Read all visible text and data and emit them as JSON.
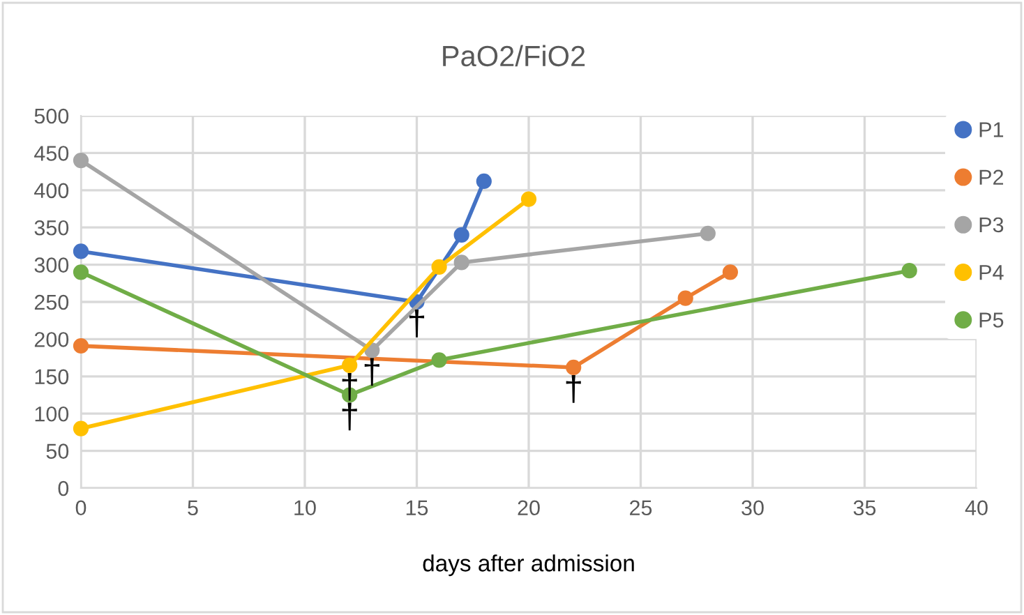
{
  "chart_data": {
    "type": "line",
    "title": "PaO2/FiO2",
    "xlabel": "days after admission",
    "xlim": [
      0,
      40
    ],
    "xticks": [
      0,
      5,
      10,
      15,
      20,
      25,
      30,
      35,
      40
    ],
    "ylim": [
      0,
      500
    ],
    "yticks": [
      0,
      50,
      100,
      150,
      200,
      250,
      300,
      350,
      400,
      450,
      500
    ],
    "grid": true,
    "legend": "top right",
    "marker": "circle",
    "line_style": "solid",
    "series": [
      {
        "name": "P1",
        "color": "#4472c4",
        "x": [
          0,
          15,
          17,
          18
        ],
        "values": [
          318,
          250,
          340,
          412
        ]
      },
      {
        "name": "P2",
        "color": "#ed7d31",
        "x": [
          0,
          22,
          27,
          29
        ],
        "values": [
          191,
          162,
          255,
          290
        ]
      },
      {
        "name": "P3",
        "color": "#a5a5a5",
        "x": [
          0,
          13,
          17,
          28
        ],
        "values": [
          440,
          185,
          303,
          342
        ]
      },
      {
        "name": "P4",
        "color": "#ffc000",
        "x": [
          0,
          12,
          16,
          20
        ],
        "values": [
          80,
          165,
          297,
          388
        ]
      },
      {
        "name": "P5",
        "color": "#70ad47",
        "x": [
          0,
          12,
          16,
          37
        ],
        "values": [
          290,
          125,
          172,
          292
        ]
      }
    ],
    "annotations": [
      {
        "text": "†",
        "x": 12,
        "y": 165
      },
      {
        "text": "†",
        "x": 12,
        "y": 125
      },
      {
        "text": "†",
        "x": 13,
        "y": 185
      },
      {
        "text": "†",
        "x": 15,
        "y": 250
      },
      {
        "text": "†",
        "x": 22,
        "y": 162
      }
    ]
  }
}
